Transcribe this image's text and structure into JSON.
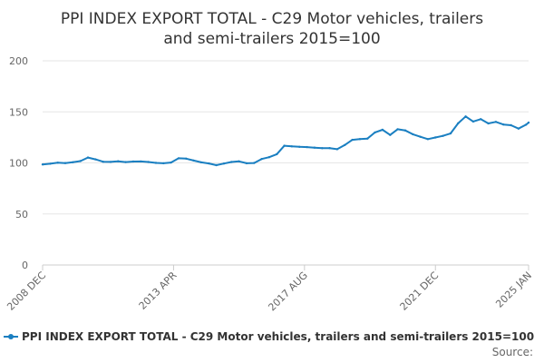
{
  "chart_data": {
    "type": "line",
    "title_lines": [
      "PPI INDEX EXPORT TOTAL - C29 Motor vehicles, trailers",
      "and semi-trailers 2015=100"
    ],
    "xlabel": "",
    "ylabel": "",
    "ylim": [
      0,
      200
    ],
    "y_ticks": [
      0,
      50,
      100,
      150,
      200
    ],
    "x_tick_labels": [
      "2008 DEC",
      "2013 APR",
      "2017 AUG",
      "2021 DEC",
      "2025 JAN"
    ],
    "x_tick_dates": [
      "2008-12",
      "2013-04",
      "2017-08",
      "2021-12",
      "2025-01"
    ],
    "grid": "horizontal",
    "legend_position": "bottom",
    "colors": {
      "series": "#1a7fc1",
      "grid": "#e6e6e6",
      "axis": "#cccccc"
    },
    "series": [
      {
        "name": "PPI INDEX EXPORT TOTAL - C29 Motor vehicles, trailers and semi-trailers 2015=100",
        "points": [
          [
            "2008-12",
            98.5
          ],
          [
            "2009-03",
            99.2
          ],
          [
            "2009-06",
            100.2
          ],
          [
            "2009-09",
            99.8
          ],
          [
            "2009-12",
            100.6
          ],
          [
            "2010-03",
            101.8
          ],
          [
            "2010-06",
            105.2
          ],
          [
            "2010-09",
            103.5
          ],
          [
            "2010-12",
            101.2
          ],
          [
            "2011-03",
            101.0
          ],
          [
            "2011-06",
            101.6
          ],
          [
            "2011-09",
            100.8
          ],
          [
            "2011-12",
            101.3
          ],
          [
            "2012-03",
            101.4
          ],
          [
            "2012-06",
            100.9
          ],
          [
            "2012-09",
            100.0
          ],
          [
            "2012-12",
            99.6
          ],
          [
            "2013-03",
            100.4
          ],
          [
            "2013-06",
            104.5
          ],
          [
            "2013-09",
            104.2
          ],
          [
            "2013-12",
            102.3
          ],
          [
            "2014-03",
            100.5
          ],
          [
            "2014-06",
            99.5
          ],
          [
            "2014-09",
            97.8
          ],
          [
            "2014-12",
            99.4
          ],
          [
            "2015-03",
            100.9
          ],
          [
            "2015-06",
            101.5
          ],
          [
            "2015-09",
            99.6
          ],
          [
            "2015-12",
            99.9
          ],
          [
            "2016-03",
            103.8
          ],
          [
            "2016-06",
            105.6
          ],
          [
            "2016-09",
            108.5
          ],
          [
            "2016-12",
            116.8
          ],
          [
            "2017-03",
            116.2
          ],
          [
            "2017-06",
            115.7
          ],
          [
            "2017-09",
            115.5
          ],
          [
            "2017-12",
            114.9
          ],
          [
            "2018-03",
            114.4
          ],
          [
            "2018-06",
            114.5
          ],
          [
            "2018-09",
            113.4
          ],
          [
            "2018-12",
            117.5
          ],
          [
            "2019-03",
            122.6
          ],
          [
            "2019-06",
            123.3
          ],
          [
            "2019-09",
            123.8
          ],
          [
            "2019-12",
            129.9
          ],
          [
            "2020-03",
            132.4
          ],
          [
            "2020-06",
            127.4
          ],
          [
            "2020-09",
            133.0
          ],
          [
            "2020-12",
            131.8
          ],
          [
            "2021-03",
            128.1
          ],
          [
            "2021-06",
            125.6
          ],
          [
            "2021-09",
            123.3
          ],
          [
            "2021-12",
            124.9
          ],
          [
            "2022-03",
            126.5
          ],
          [
            "2022-06",
            128.8
          ],
          [
            "2022-09",
            138.7
          ],
          [
            "2022-12",
            145.5
          ],
          [
            "2023-03",
            140.5
          ],
          [
            "2023-06",
            142.8
          ],
          [
            "2023-09",
            138.7
          ],
          [
            "2023-12",
            140.2
          ],
          [
            "2024-03",
            137.6
          ],
          [
            "2024-06",
            136.9
          ],
          [
            "2024-09",
            133.6
          ],
          [
            "2024-12",
            137.4
          ],
          [
            "2025-01",
            139.5
          ]
        ]
      }
    ],
    "source_label": "Source:"
  }
}
